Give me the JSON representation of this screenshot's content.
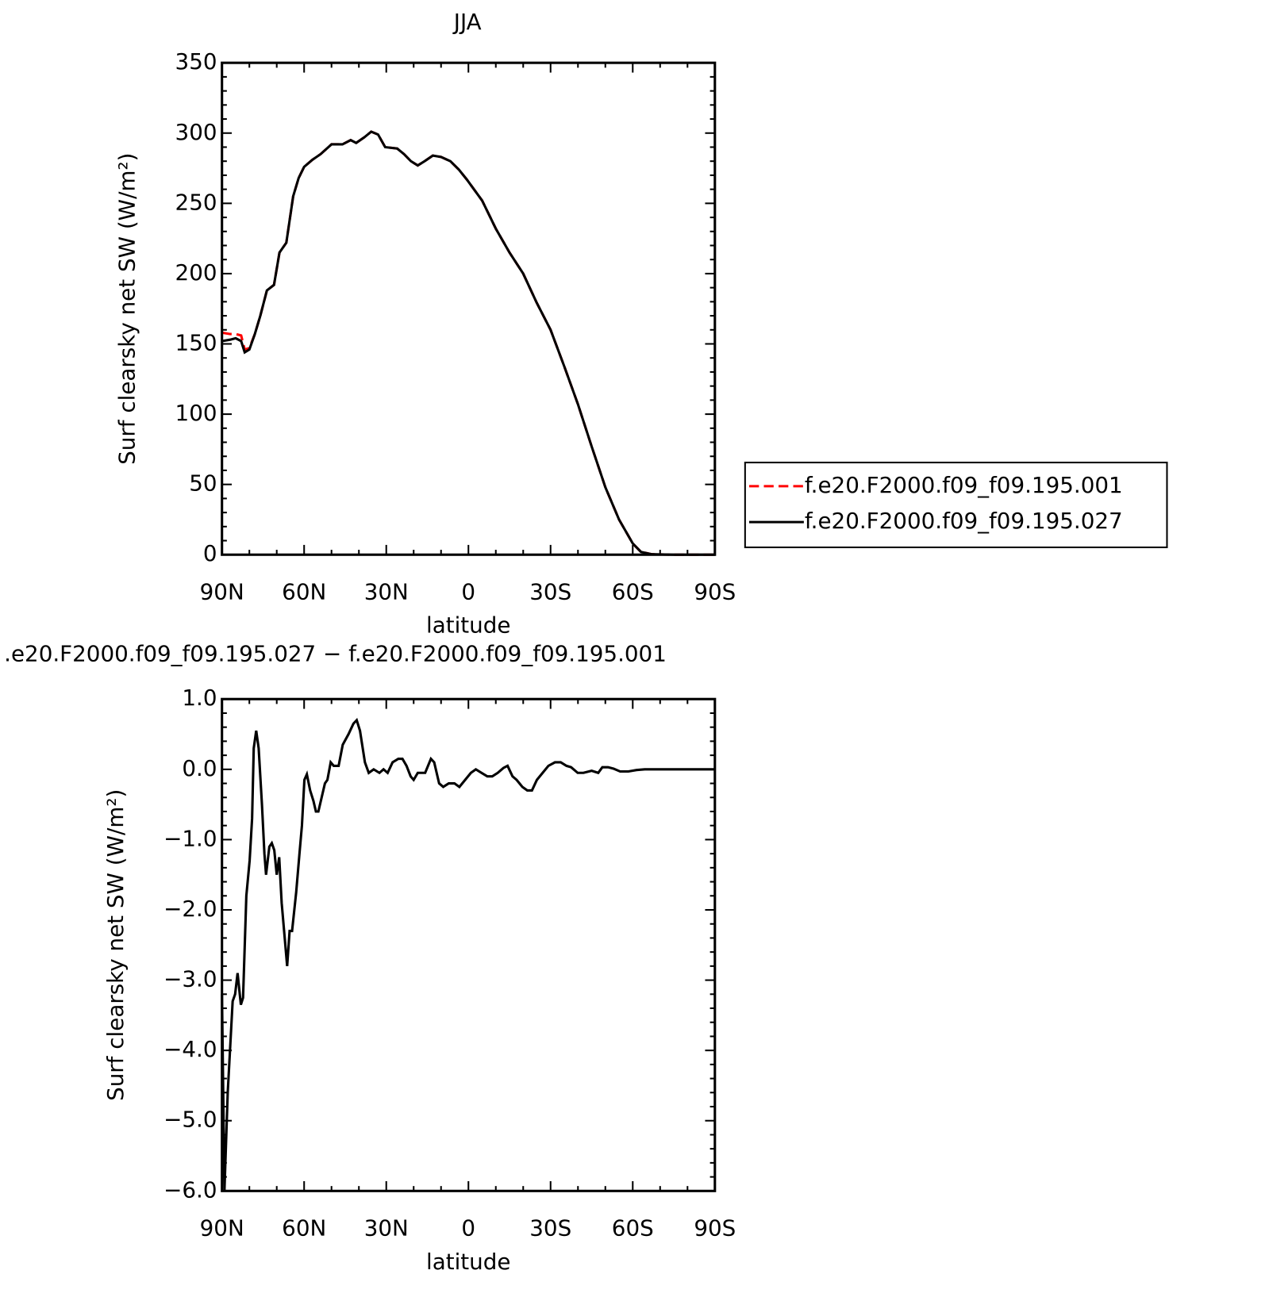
{
  "chart_data": [
    {
      "type": "line",
      "title": "JJA",
      "xlabel": "latitude",
      "ylabel": "Surf clearsky net SW (W/m²)",
      "xlim": [
        90,
        -90
      ],
      "xticks": [
        {
          "value": 90,
          "label": "90N"
        },
        {
          "value": 60,
          "label": "60N"
        },
        {
          "value": 30,
          "label": "30N"
        },
        0,
        {
          "value": -30,
          "label": "30S"
        },
        {
          "value": -60,
          "label": "60S"
        },
        {
          "value": -90,
          "label": "90S"
        }
      ],
      "ylim": [
        0,
        350
      ],
      "yticks": [
        0,
        50,
        100,
        150,
        200,
        250,
        300,
        350
      ],
      "legend": "right",
      "x": [
        90,
        87,
        85,
        83,
        81.7,
        80,
        78,
        76,
        73.6,
        71,
        69,
        66.5,
        64,
        62,
        60,
        57,
        54,
        50,
        46,
        43,
        41,
        38,
        35.5,
        33,
        30.4,
        26,
        23.5,
        21,
        18.5,
        16,
        13,
        10,
        6.6,
        3.5,
        0.6,
        -5,
        -10,
        -15,
        -20,
        -25,
        -30,
        -35,
        -40,
        -45,
        -50,
        -55,
        -60,
        -63,
        -67,
        -75,
        -90
      ],
      "series": [
        {
          "name": "f.e20.F2000.f09_f09.195.001",
          "color": "#ff0000",
          "linestyle": "dashed",
          "values": [
            158,
            157,
            157,
            156,
            146,
            147,
            157,
            170,
            188,
            192,
            215,
            222,
            255,
            268,
            276,
            281,
            285,
            292,
            292,
            295,
            293,
            297,
            301,
            299,
            290,
            289,
            285,
            280,
            277,
            280,
            284,
            283,
            280,
            274,
            267,
            252,
            232,
            215,
            200,
            179,
            160,
            134,
            107,
            77,
            48,
            25,
            8,
            2,
            0.3,
            0,
            0
          ]
        },
        {
          "name": "f.e20.F2000.f09_f09.195.027",
          "color": "#000000",
          "linestyle": "solid",
          "values": [
            152,
            153,
            154,
            152,
            144,
            146,
            157,
            170,
            188,
            192,
            215,
            222,
            255,
            268,
            276,
            281,
            285,
            292,
            292,
            295,
            293,
            297,
            301,
            299,
            290,
            289,
            285,
            280,
            277,
            280,
            284,
            283,
            280,
            274,
            267,
            252,
            232,
            215,
            200,
            179,
            160,
            134,
            107,
            77,
            48,
            25,
            8,
            2,
            0.3,
            0,
            0
          ]
        }
      ]
    },
    {
      "type": "line",
      "title": ".e20.F2000.f09_f09.195.027 − f.e20.F2000.f09_f09.195.001",
      "xlabel": "latitude",
      "ylabel": "Surf clearsky net SW (W/m²)",
      "xlim": [
        90,
        -90
      ],
      "xticks": [
        {
          "value": 90,
          "label": "90N"
        },
        {
          "value": 60,
          "label": "60N"
        },
        {
          "value": 30,
          "label": "30N"
        },
        0,
        {
          "value": -30,
          "label": "30S"
        },
        {
          "value": -60,
          "label": "60S"
        },
        {
          "value": -90,
          "label": "90S"
        }
      ],
      "ylim": [
        -6,
        1
      ],
      "yticks": [
        {
          "value": -6,
          "label": "−6.0"
        },
        {
          "value": -5,
          "label": "−5.0"
        },
        {
          "value": -4,
          "label": "−4.0"
        },
        {
          "value": -3,
          "label": "−3.0"
        },
        {
          "value": -2,
          "label": "−2.0"
        },
        {
          "value": -1,
          "label": "−1.0"
        },
        {
          "value": 0,
          "label": "0.0"
        },
        {
          "value": 1,
          "label": "1.0"
        }
      ],
      "x": [
        90,
        89.1,
        87.9,
        86.1,
        85.2,
        84.3,
        83.1,
        82.3,
        81.1,
        79.9,
        79,
        78.4,
        77.5,
        76.6,
        75.4,
        74.5,
        73.9,
        72.7,
        71.8,
        70.9,
        70,
        69.1,
        68.2,
        66.2,
        65.3,
        64.4,
        62.9,
        61.7,
        60.8,
        59.9,
        59,
        57.8,
        56.6,
        55.7,
        54.8,
        53.6,
        52.4,
        51.5,
        50.3,
        49.2,
        47.4,
        45.9,
        43.8,
        42,
        40.8,
        39.6,
        37.8,
        36.4,
        34.6,
        32.5,
        31,
        29.5,
        27.7,
        25.6,
        24.1,
        22.6,
        21.1,
        20,
        18.5,
        17,
        15.8,
        13.7,
        12.5,
        10.7,
        9.2,
        7.2,
        5.1,
        3.3,
        1.2,
        -0.9,
        -2.7,
        -4.8,
        -6.9,
        -8.7,
        -10.7,
        -12.8,
        -14.3,
        -16.1,
        -17.6,
        -19.7,
        -21.5,
        -23.2,
        -25,
        -27.1,
        -29.2,
        -31.6,
        -33.7,
        -35.8,
        -37.5,
        -39.9,
        -42,
        -45,
        -47.4,
        -48.9,
        -51,
        -53,
        -55.4,
        -58.4,
        -61.4,
        -64.4,
        -90
      ],
      "series": [
        {
          "color": "#000000",
          "linestyle": "solid",
          "values": [
            -3.2,
            -6.0,
            -4.6,
            -3.3,
            -3.2,
            -2.9,
            -3.35,
            -3.25,
            -1.8,
            -1.3,
            -0.7,
            0.3,
            0.55,
            0.3,
            -0.5,
            -1.2,
            -1.5,
            -1.1,
            -1.05,
            -1.15,
            -1.5,
            -1.25,
            -1.9,
            -2.8,
            -2.3,
            -2.3,
            -1.75,
            -1.2,
            -0.8,
            -0.15,
            -0.07,
            -0.3,
            -0.45,
            -0.6,
            -0.6,
            -0.4,
            -0.2,
            -0.15,
            0.1,
            0.05,
            0.05,
            0.35,
            0.5,
            0.65,
            0.7,
            0.55,
            0.1,
            -0.05,
            0,
            -0.05,
            0,
            -0.05,
            0.1,
            0.15,
            0.15,
            0.05,
            -0.1,
            -0.15,
            -0.05,
            -0.05,
            -0.05,
            0.15,
            0.1,
            -0.2,
            -0.25,
            -0.2,
            -0.2,
            -0.25,
            -0.15,
            -0.05,
            0,
            -0.05,
            -0.1,
            -0.1,
            -0.05,
            0.02,
            0.05,
            -0.1,
            -0.15,
            -0.25,
            -0.3,
            -0.3,
            -0.15,
            -0.05,
            0.05,
            0.1,
            0.1,
            0.05,
            0.03,
            -0.05,
            -0.05,
            -0.02,
            -0.05,
            0.03,
            0.03,
            0.01,
            -0.03,
            -0.03,
            -0.01,
            0,
            0
          ]
        }
      ]
    }
  ]
}
